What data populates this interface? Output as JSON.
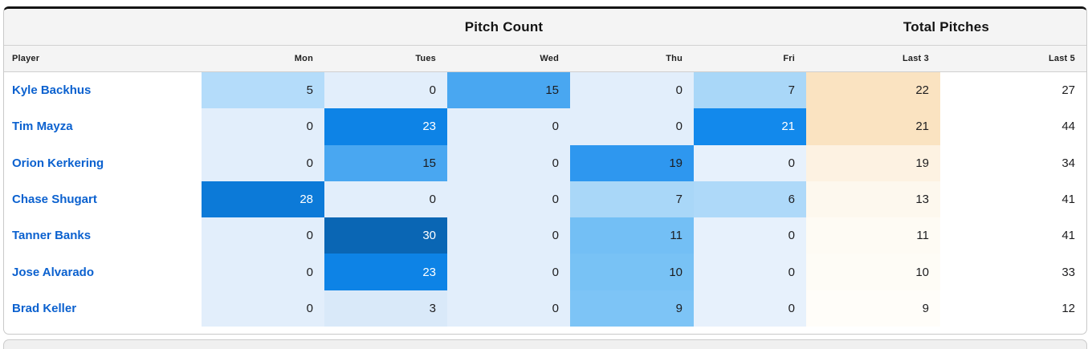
{
  "colors": {
    "accent_link_blue": "#0b61cf",
    "header_bg": "#f4f4f4",
    "card_top_border": "#141414",
    "card_border": "#c9c9c9",
    "value_text_dark": "#1d1d1f",
    "value_text_light": "#ffffff"
  },
  "table": {
    "group_headers": {
      "pitch_count": "Pitch Count",
      "total_pitches": "Total Pitches"
    },
    "columns": [
      "Player",
      "Mon",
      "Tues",
      "Wed",
      "Thu",
      "Fri",
      "Last 3",
      "Last 5"
    ],
    "rows": [
      {
        "player": "Kyle Backhus",
        "cells": [
          {
            "v": 5,
            "bg": "#b4dcfa",
            "fg": "#1d1d1f"
          },
          {
            "v": 0,
            "bg": "#e2eefb",
            "fg": "#1d1d1f"
          },
          {
            "v": 15,
            "bg": "#49a7f1",
            "fg": "#1d1d1f"
          },
          {
            "v": 0,
            "bg": "#e2eefb",
            "fg": "#1d1d1f"
          },
          {
            "v": 7,
            "bg": "#a9d7f8",
            "fg": "#1d1d1f"
          },
          {
            "v": 22,
            "bg": "#fae3c1",
            "fg": "#1d1d1f"
          },
          {
            "v": 27,
            "bg": "",
            "fg": "#1d1d1f"
          }
        ]
      },
      {
        "player": "Tim Mayza",
        "cells": [
          {
            "v": 0,
            "bg": "#e2eefb",
            "fg": "#1d1d1f"
          },
          {
            "v": 23,
            "bg": "#0d83e6",
            "fg": "#ffffff"
          },
          {
            "v": 0,
            "bg": "#e2eefb",
            "fg": "#1d1d1f"
          },
          {
            "v": 0,
            "bg": "#e2eefb",
            "fg": "#1d1d1f"
          },
          {
            "v": 21,
            "bg": "#1289ec",
            "fg": "#ffffff"
          },
          {
            "v": 21,
            "bg": "#fae3c1",
            "fg": "#1d1d1f"
          },
          {
            "v": 44,
            "bg": "",
            "fg": "#1d1d1f"
          }
        ]
      },
      {
        "player": "Orion Kerkering",
        "cells": [
          {
            "v": 0,
            "bg": "#e2eefb",
            "fg": "#1d1d1f"
          },
          {
            "v": 15,
            "bg": "#49a7f1",
            "fg": "#1d1d1f"
          },
          {
            "v": 0,
            "bg": "#e2eefb",
            "fg": "#1d1d1f"
          },
          {
            "v": 19,
            "bg": "#2e97ef",
            "fg": "#1d1d1f"
          },
          {
            "v": 0,
            "bg": "#e7f1fc",
            "fg": "#1d1d1f"
          },
          {
            "v": 19,
            "bg": "#fdf2e2",
            "fg": "#1d1d1f"
          },
          {
            "v": 34,
            "bg": "",
            "fg": "#1d1d1f"
          }
        ]
      },
      {
        "player": "Chase Shugart",
        "cells": [
          {
            "v": 28,
            "bg": "#0c7ad8",
            "fg": "#ffffff"
          },
          {
            "v": 0,
            "bg": "#e2eefb",
            "fg": "#1d1d1f"
          },
          {
            "v": 0,
            "bg": "#e2eefb",
            "fg": "#1d1d1f"
          },
          {
            "v": 7,
            "bg": "#a9d7f8",
            "fg": "#1d1d1f"
          },
          {
            "v": 6,
            "bg": "#aed9f9",
            "fg": "#1d1d1f"
          },
          {
            "v": 13,
            "bg": "#fdf8ee",
            "fg": "#1d1d1f"
          },
          {
            "v": 41,
            "bg": "",
            "fg": "#1d1d1f"
          }
        ]
      },
      {
        "player": "Tanner Banks",
        "cells": [
          {
            "v": 0,
            "bg": "#e2eefb",
            "fg": "#1d1d1f"
          },
          {
            "v": 30,
            "bg": "#0a66b4",
            "fg": "#ffffff"
          },
          {
            "v": 0,
            "bg": "#e2eefb",
            "fg": "#1d1d1f"
          },
          {
            "v": 11,
            "bg": "#73bff5",
            "fg": "#1d1d1f"
          },
          {
            "v": 0,
            "bg": "#e7f1fc",
            "fg": "#1d1d1f"
          },
          {
            "v": 11,
            "bg": "#fefbf4",
            "fg": "#1d1d1f"
          },
          {
            "v": 41,
            "bg": "",
            "fg": "#1d1d1f"
          }
        ]
      },
      {
        "player": "Jose Alvarado",
        "cells": [
          {
            "v": 0,
            "bg": "#e2eefb",
            "fg": "#1d1d1f"
          },
          {
            "v": 23,
            "bg": "#0d83e6",
            "fg": "#ffffff"
          },
          {
            "v": 0,
            "bg": "#e2eefb",
            "fg": "#1d1d1f"
          },
          {
            "v": 10,
            "bg": "#78c2f5",
            "fg": "#1d1d1f"
          },
          {
            "v": 0,
            "bg": "#e7f1fc",
            "fg": "#1d1d1f"
          },
          {
            "v": 10,
            "bg": "#fefcf6",
            "fg": "#1d1d1f"
          },
          {
            "v": 33,
            "bg": "",
            "fg": "#1d1d1f"
          }
        ]
      },
      {
        "player": "Brad Keller",
        "cells": [
          {
            "v": 0,
            "bg": "#e2eefb",
            "fg": "#1d1d1f"
          },
          {
            "v": 3,
            "bg": "#d9e9f9",
            "fg": "#1d1d1f"
          },
          {
            "v": 0,
            "bg": "#e2eefb",
            "fg": "#1d1d1f"
          },
          {
            "v": 9,
            "bg": "#7dc4f6",
            "fg": "#1d1d1f"
          },
          {
            "v": 0,
            "bg": "#e7f1fc",
            "fg": "#1d1d1f"
          },
          {
            "v": 9,
            "bg": "#fffdf9",
            "fg": "#1d1d1f"
          },
          {
            "v": 12,
            "bg": "",
            "fg": "#1d1d1f"
          }
        ]
      }
    ]
  },
  "chart_data": {
    "type": "heatmap",
    "title_groups": [
      "Pitch Count",
      "Total Pitches"
    ],
    "columns": [
      "Mon",
      "Tues",
      "Wed",
      "Thu",
      "Fri",
      "Last 3",
      "Last 5"
    ],
    "rows": [
      "Kyle Backhus",
      "Tim Mayza",
      "Orion Kerkering",
      "Chase Shugart",
      "Tanner Banks",
      "Jose Alvarado",
      "Brad Keller"
    ],
    "values": [
      [
        5,
        0,
        15,
        0,
        7,
        22,
        27
      ],
      [
        0,
        23,
        0,
        0,
        21,
        21,
        44
      ],
      [
        0,
        15,
        0,
        19,
        0,
        19,
        34
      ],
      [
        28,
        0,
        0,
        7,
        6,
        13,
        41
      ],
      [
        0,
        30,
        0,
        11,
        0,
        11,
        41
      ],
      [
        0,
        23,
        0,
        10,
        0,
        10,
        33
      ],
      [
        0,
        3,
        0,
        9,
        0,
        9,
        12
      ]
    ],
    "layout": {
      "day_columns_scale": "blue (low=light, high=dark)",
      "last3_column_scale": "orange (high=dark)",
      "last5_column_scale": "none (plain white)"
    }
  }
}
